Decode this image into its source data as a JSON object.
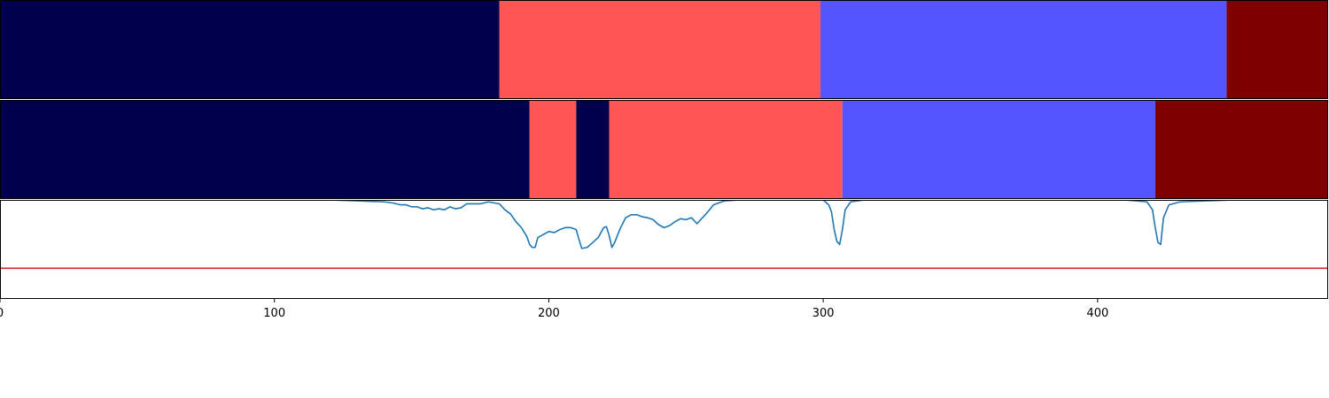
{
  "chart_data": [
    {
      "type": "segment-bar",
      "name": "",
      "xlim": [
        0,
        484
      ],
      "segments": [
        {
          "start": 0,
          "end": 182,
          "color": "#00004c"
        },
        {
          "start": 182,
          "end": 299,
          "color": "#ff5555"
        },
        {
          "start": 299,
          "end": 447,
          "color": "#5555ff"
        },
        {
          "start": 447,
          "end": 484,
          "color": "#7f0000"
        }
      ]
    },
    {
      "type": "segment-bar",
      "name": "",
      "xlim": [
        0,
        484
      ],
      "segments": [
        {
          "start": 0,
          "end": 193,
          "color": "#00004c"
        },
        {
          "start": 193,
          "end": 210,
          "color": "#ff5555"
        },
        {
          "start": 210,
          "end": 222,
          "color": "#00004c"
        },
        {
          "start": 222,
          "end": 307,
          "color": "#ff5555"
        },
        {
          "start": 307,
          "end": 421,
          "color": "#5555ff"
        },
        {
          "start": 421,
          "end": 484,
          "color": "#7f0000"
        }
      ]
    },
    {
      "type": "line",
      "xlim": [
        0,
        484
      ],
      "ylim": [
        0,
        1
      ],
      "xticks": [
        0,
        100,
        200,
        300,
        400
      ],
      "threshold": {
        "y": 0.31,
        "color": "#d62728"
      },
      "series": [
        {
          "color": "#1f77b4",
          "x": [
            0,
            20,
            40,
            60,
            80,
            100,
            120,
            130,
            135,
            140,
            143,
            146,
            148,
            150,
            152,
            154,
            156,
            158,
            160,
            162,
            164,
            166,
            168,
            170,
            172,
            175,
            178,
            180,
            182,
            184,
            186,
            188,
            190,
            192,
            193,
            194,
            195,
            196,
            198,
            200,
            202,
            204,
            206,
            208,
            210,
            211,
            212,
            214,
            216,
            218,
            220,
            221,
            222,
            223,
            224,
            226,
            228,
            230,
            232,
            234,
            236,
            238,
            240,
            242,
            244,
            246,
            248,
            250,
            252,
            254,
            256,
            258,
            260,
            264,
            270,
            280,
            290,
            300,
            302,
            303,
            304,
            305,
            306,
            307,
            308,
            310,
            315,
            330,
            360,
            390,
            410,
            418,
            420,
            421,
            422,
            423,
            424,
            426,
            430,
            450,
            484
          ],
          "y": [
            1.0,
            1.0,
            1.0,
            1.0,
            1.0,
            1.0,
            1.0,
            0.99,
            0.985,
            0.98,
            0.97,
            0.95,
            0.95,
            0.93,
            0.93,
            0.91,
            0.92,
            0.9,
            0.91,
            0.9,
            0.93,
            0.91,
            0.92,
            0.96,
            0.96,
            0.96,
            0.98,
            0.97,
            0.96,
            0.9,
            0.86,
            0.78,
            0.72,
            0.63,
            0.55,
            0.52,
            0.52,
            0.62,
            0.65,
            0.68,
            0.67,
            0.7,
            0.72,
            0.72,
            0.7,
            0.6,
            0.51,
            0.52,
            0.57,
            0.62,
            0.72,
            0.73,
            0.64,
            0.52,
            0.57,
            0.71,
            0.82,
            0.85,
            0.85,
            0.83,
            0.82,
            0.8,
            0.75,
            0.72,
            0.74,
            0.78,
            0.81,
            0.8,
            0.82,
            0.76,
            0.82,
            0.88,
            0.95,
            0.99,
            1.0,
            1.0,
            1.0,
            1.0,
            0.95,
            0.88,
            0.7,
            0.58,
            0.55,
            0.7,
            0.9,
            0.98,
            1.0,
            1.0,
            1.0,
            1.0,
            1.0,
            0.98,
            0.9,
            0.72,
            0.57,
            0.55,
            0.82,
            0.95,
            0.98,
            1.0,
            1.0
          ]
        }
      ]
    }
  ]
}
